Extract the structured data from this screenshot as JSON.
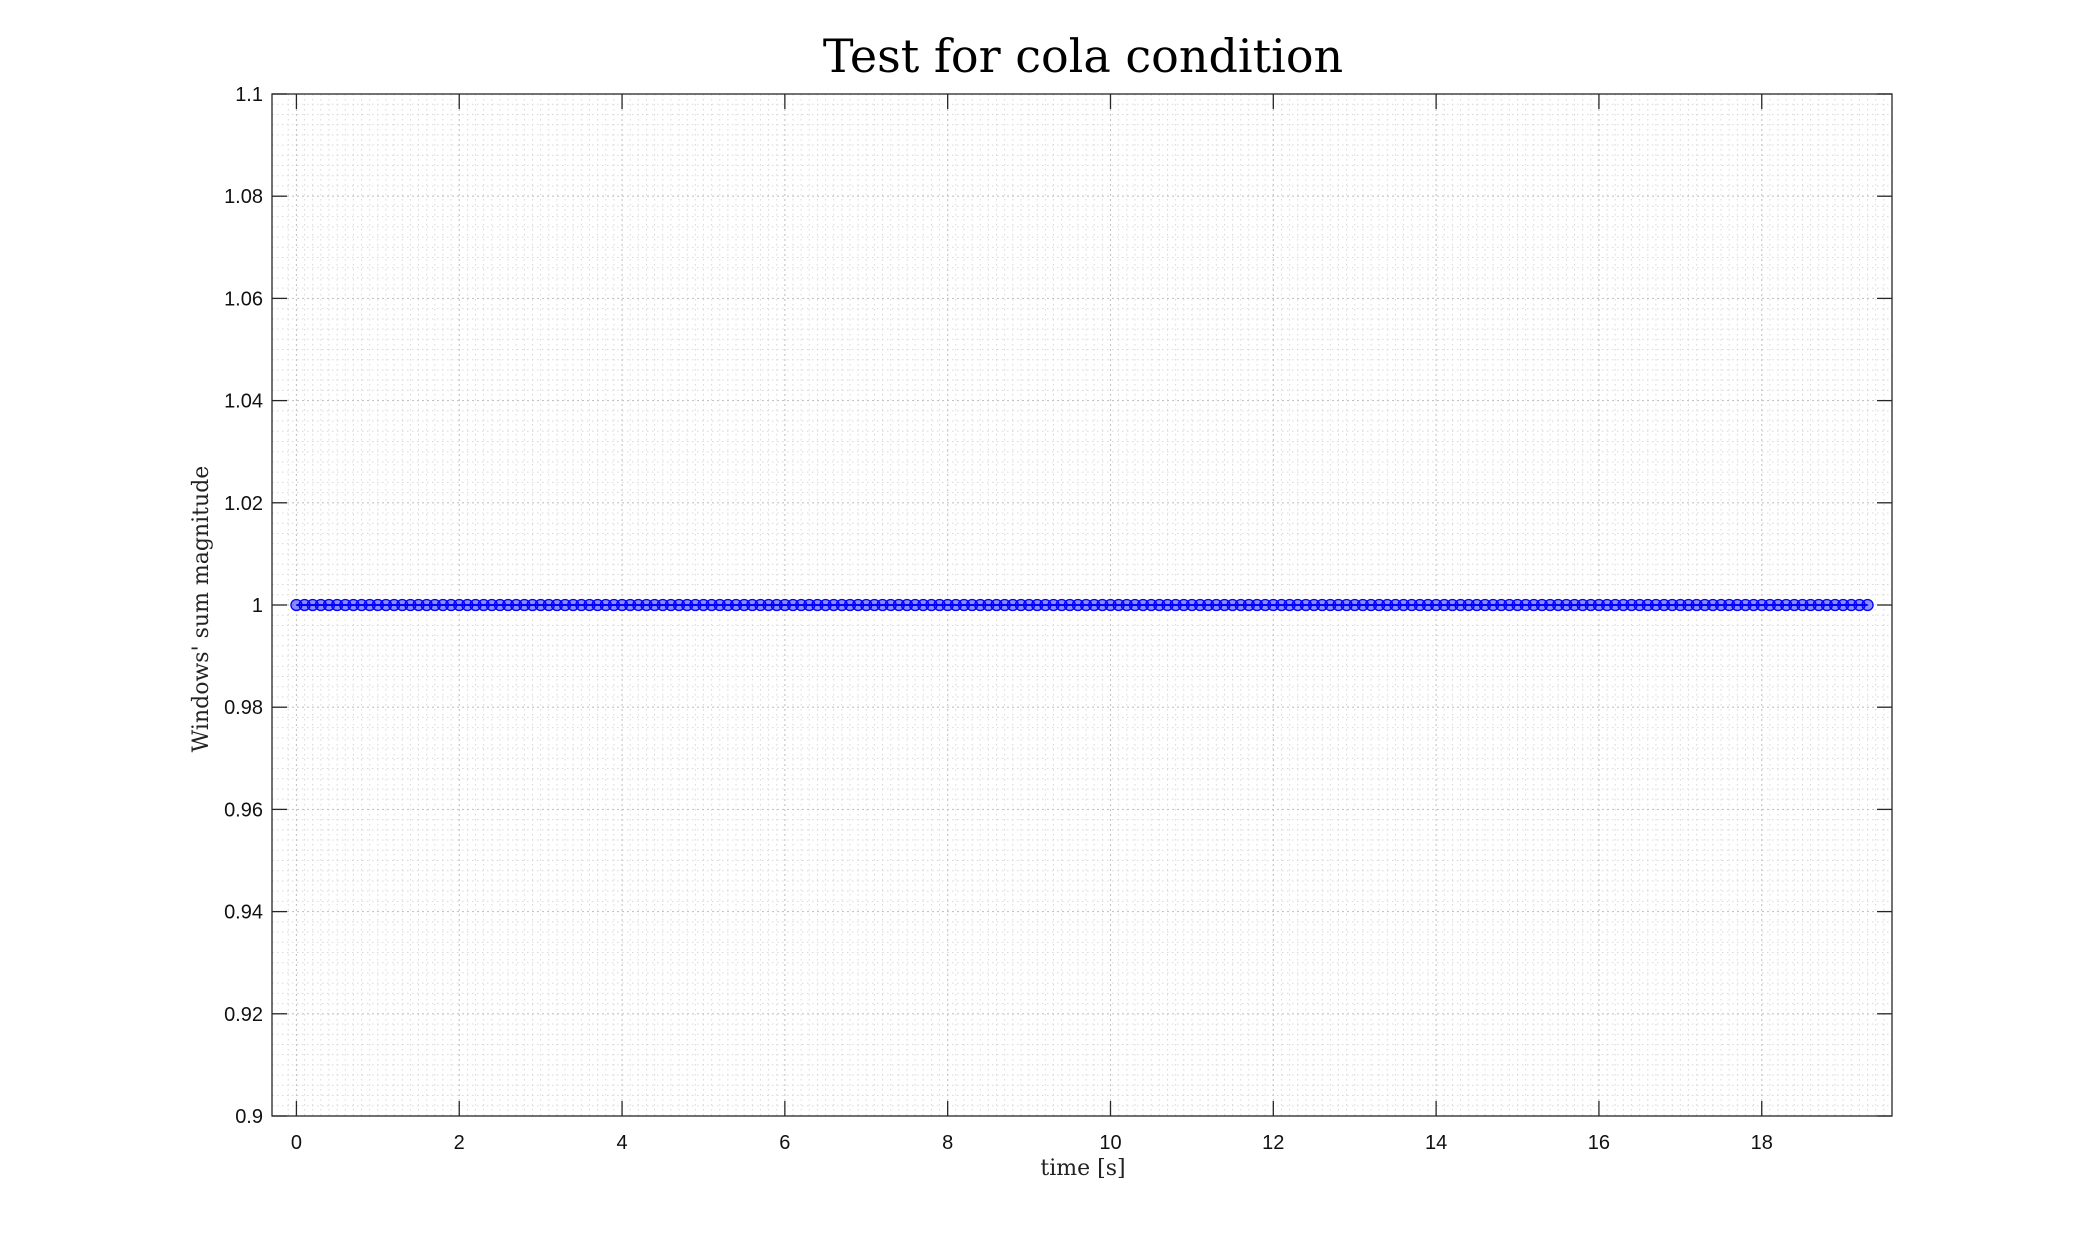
{
  "chart_data": {
    "type": "line",
    "title": "Test for cola condition",
    "xlabel": "time [s]",
    "ylabel": "Windows' sum magnitude",
    "xlim": [
      -0.3,
      19.6
    ],
    "ylim": [
      0.9,
      1.1
    ],
    "x_ticks": [
      0,
      2,
      4,
      6,
      8,
      10,
      12,
      14,
      16,
      18
    ],
    "x_tick_labels": [
      "0",
      "2",
      "4",
      "6",
      "8",
      "10",
      "12",
      "14",
      "16",
      "18"
    ],
    "y_ticks": [
      0.9,
      0.92,
      0.94,
      0.96,
      0.98,
      1.0,
      1.02,
      1.04,
      1.06,
      1.08,
      1.1
    ],
    "y_tick_labels": [
      "0.9",
      "0.92",
      "0.94",
      "0.96",
      "0.98",
      "1",
      "1.02",
      "1.04",
      "1.06",
      "1.08",
      "1.1"
    ],
    "grid": true,
    "minor_grid": true,
    "series": [
      {
        "color": "#0000ff",
        "marker": "circle",
        "x_start": 0,
        "x_end": 19.3,
        "x_step": 0.1,
        "y_constant": 1.0
      }
    ]
  }
}
